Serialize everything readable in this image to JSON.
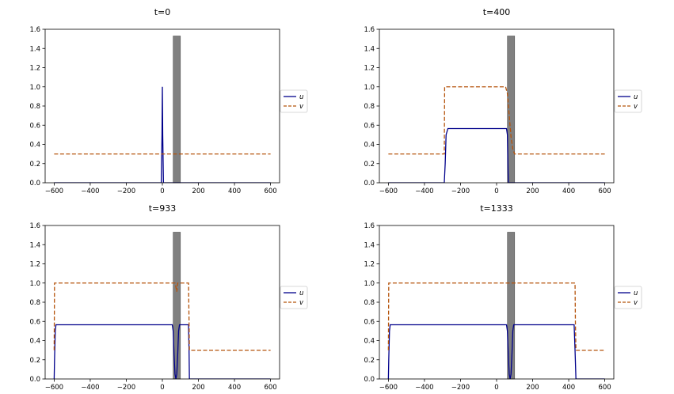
{
  "chart_data": [
    {
      "type": "line",
      "title": "t=0",
      "xlim": [
        -650,
        650
      ],
      "ylim": [
        0,
        1.6
      ],
      "xticks": [
        -600,
        -400,
        -200,
        0,
        200,
        400,
        600
      ],
      "yticks": [
        0.0,
        0.2,
        0.4,
        0.6,
        0.8,
        1.0,
        1.2,
        1.4,
        1.6
      ],
      "xtick_labels": [
        "−600",
        "−400",
        "−200",
        "0",
        "200",
        "400",
        "600"
      ],
      "ytick_labels": [
        "0.0",
        "0.2",
        "0.4",
        "0.6",
        "0.8",
        "1.0",
        "1.2",
        "1.4",
        "1.6"
      ],
      "legend_position": "right",
      "obstacle": {
        "x_start": 60,
        "x_end": 100,
        "height": 1.53,
        "color": "#808080"
      },
      "series": [
        {
          "name": "u",
          "style": "solid",
          "color": "#00008b",
          "x": [
            -600,
            -6,
            -2,
            0,
            2,
            6,
            600
          ],
          "y": [
            0,
            0,
            0.5,
            1.0,
            0.5,
            0,
            0
          ]
        },
        {
          "name": "v",
          "style": "dashed",
          "color": "#b5530b",
          "x": [
            -600,
            600
          ],
          "y": [
            0.3,
            0.3
          ]
        }
      ]
    },
    {
      "type": "line",
      "title": "t=400",
      "xlim": [
        -650,
        650
      ],
      "ylim": [
        0,
        1.6
      ],
      "xticks": [
        -600,
        -400,
        -200,
        0,
        200,
        400,
        600
      ],
      "yticks": [
        0.0,
        0.2,
        0.4,
        0.6,
        0.8,
        1.0,
        1.2,
        1.4,
        1.6
      ],
      "xtick_labels": [
        "−600",
        "−400",
        "−200",
        "0",
        "200",
        "400",
        "600"
      ],
      "ytick_labels": [
        "0.0",
        "0.2",
        "0.4",
        "0.6",
        "0.8",
        "1.0",
        "1.2",
        "1.4",
        "1.6"
      ],
      "legend_position": "right",
      "obstacle": {
        "x_start": 60,
        "x_end": 100,
        "height": 1.53,
        "color": "#808080"
      },
      "series": [
        {
          "name": "u",
          "style": "solid",
          "color": "#00008b",
          "x": [
            -600,
            -290,
            -285,
            -280,
            -270,
            55,
            60,
            62,
            64,
            66,
            600
          ],
          "y": [
            0,
            0,
            0.2,
            0.5,
            0.565,
            0.565,
            0.5,
            0.3,
            0.1,
            0,
            0
          ]
        },
        {
          "name": "v",
          "style": "dashed",
          "color": "#b5530b",
          "x": [
            -600,
            -290,
            -288,
            50,
            60,
            70,
            80,
            90,
            100,
            600
          ],
          "y": [
            0.3,
            0.3,
            1.0,
            1.0,
            0.93,
            0.7,
            0.48,
            0.35,
            0.3,
            0.3
          ]
        }
      ]
    },
    {
      "type": "line",
      "title": "t=933",
      "xlim": [
        -650,
        650
      ],
      "ylim": [
        0,
        1.6
      ],
      "xticks": [
        -600,
        -400,
        -200,
        0,
        200,
        400,
        600
      ],
      "yticks": [
        0.0,
        0.2,
        0.4,
        0.6,
        0.8,
        1.0,
        1.2,
        1.4,
        1.6
      ],
      "xtick_labels": [
        "−600",
        "−400",
        "−200",
        "0",
        "200",
        "400",
        "600"
      ],
      "ytick_labels": [
        "0.0",
        "0.2",
        "0.4",
        "0.6",
        "0.8",
        "1.0",
        "1.2",
        "1.4",
        "1.6"
      ],
      "legend_position": "right",
      "obstacle": {
        "x_start": 60,
        "x_end": 100,
        "height": 1.53,
        "color": "#808080"
      },
      "series": [
        {
          "name": "u",
          "style": "solid",
          "color": "#00008b",
          "x": [
            -600,
            -598,
            -594,
            -590,
            55,
            60,
            65,
            70,
            75,
            80,
            85,
            90,
            95,
            100,
            145,
            148,
            150,
            600
          ],
          "y": [
            0,
            0.2,
            0.5,
            0.565,
            0.565,
            0.5,
            0.25,
            0.05,
            0.0,
            0.05,
            0.25,
            0.5,
            0.565,
            0.565,
            0.565,
            0.3,
            0,
            0
          ]
        },
        {
          "name": "v",
          "style": "dashed",
          "color": "#b5530b",
          "x": [
            -600,
            -598,
            70,
            75,
            80,
            85,
            145,
            148,
            150,
            153,
            600
          ],
          "y": [
            0.3,
            1.0,
            1.0,
            0.96,
            0.91,
            1.0,
            1.0,
            0.6,
            0.3,
            0.3,
            0.3
          ]
        }
      ]
    },
    {
      "type": "line",
      "title": "t=1333",
      "xlim": [
        -650,
        650
      ],
      "ylim": [
        0,
        1.6
      ],
      "xticks": [
        -600,
        -400,
        -200,
        0,
        200,
        400,
        600
      ],
      "yticks": [
        0.0,
        0.2,
        0.4,
        0.6,
        0.8,
        1.0,
        1.2,
        1.4,
        1.6
      ],
      "xtick_labels": [
        "−600",
        "−400",
        "−200",
        "0",
        "200",
        "400",
        "600"
      ],
      "ytick_labels": [
        "0.0",
        "0.2",
        "0.4",
        "0.6",
        "0.8",
        "1.0",
        "1.2",
        "1.4",
        "1.6"
      ],
      "legend_position": "right",
      "obstacle": {
        "x_start": 60,
        "x_end": 100,
        "height": 1.53,
        "color": "#808080"
      },
      "series": [
        {
          "name": "u",
          "style": "solid",
          "color": "#00008b",
          "x": [
            -600,
            -598,
            -594,
            -590,
            55,
            60,
            65,
            70,
            75,
            80,
            85,
            90,
            95,
            100,
            430,
            435,
            440,
            600
          ],
          "y": [
            0,
            0.2,
            0.5,
            0.565,
            0.565,
            0.5,
            0.25,
            0.05,
            0.0,
            0.05,
            0.25,
            0.5,
            0.565,
            0.565,
            0.565,
            0.3,
            0,
            0
          ]
        },
        {
          "name": "v",
          "style": "dashed",
          "color": "#b5530b",
          "x": [
            -600,
            -598,
            435,
            437,
            440,
            600
          ],
          "y": [
            0.3,
            1.0,
            1.0,
            0.6,
            0.3,
            0.3
          ]
        }
      ]
    }
  ]
}
